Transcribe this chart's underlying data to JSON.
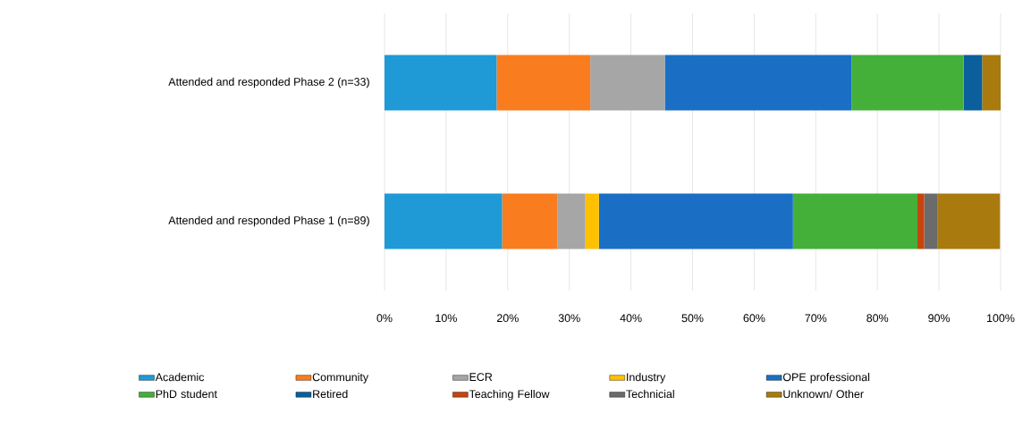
{
  "chart_data": {
    "type": "bar",
    "orientation": "horizontal",
    "stacked": true,
    "categories": [
      "Attended and responded Phase 2 (n=33)",
      "Attended and responded Phase 1  (n=89)"
    ],
    "series": [
      {
        "name": "Academic",
        "color": "#1f9ad6",
        "values": [
          18.2,
          19.1
        ]
      },
      {
        "name": "Community",
        "color": "#f97d1f",
        "values": [
          15.2,
          9.0
        ]
      },
      {
        "name": "ECR",
        "color": "#a6a6a6",
        "values": [
          12.1,
          4.5
        ]
      },
      {
        "name": "Industry",
        "color": "#ffc000",
        "values": [
          0,
          2.2
        ]
      },
      {
        "name": "OPE professional",
        "color": "#1a6fc4",
        "values": [
          30.3,
          31.5
        ]
      },
      {
        "name": "PhD student",
        "color": "#44b03a",
        "values": [
          18.2,
          20.2
        ]
      },
      {
        "name": "Retired",
        "color": "#0b5f9c",
        "values": [
          3.0,
          0
        ]
      },
      {
        "name": "Teaching Fellow",
        "color": "#c5450e",
        "values": [
          0,
          1.1
        ]
      },
      {
        "name": "Technicial",
        "color": "#6b6b6b",
        "values": [
          0,
          2.2
        ]
      },
      {
        "name": "Unknown/ Other",
        "color": "#a97a0d",
        "values": [
          3.0,
          10.1
        ]
      }
    ],
    "xlim": [
      0,
      100
    ],
    "xticks": [
      {
        "value": 0,
        "label": "0%"
      },
      {
        "value": 10,
        "label": "10%"
      },
      {
        "value": 20,
        "label": "20%"
      },
      {
        "value": 30,
        "label": "30%"
      },
      {
        "value": 40,
        "label": "40%"
      },
      {
        "value": 50,
        "label": "50%"
      },
      {
        "value": 60,
        "label": "60%"
      },
      {
        "value": 70,
        "label": "70%"
      },
      {
        "value": 80,
        "label": "80%"
      },
      {
        "value": 90,
        "label": "90%"
      },
      {
        "value": 100,
        "label": "100%"
      }
    ],
    "grid": "x",
    "legend": "bottom"
  }
}
